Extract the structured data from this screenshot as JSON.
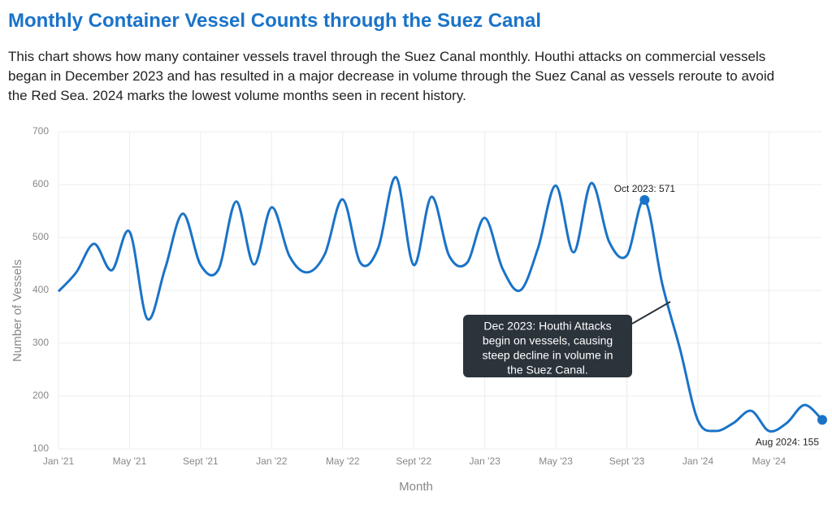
{
  "chart_data": {
    "type": "line",
    "title": "Monthly Container Vessel Counts through the Suez Canal",
    "subtitle": "This chart shows how many container vessels travel through the Suez Canal monthly. Houthi attacks on commercial vessels began in December 2023 and has resulted in a major decrease in volume through the Suez Canal as vessels reroute to avoid the Red Sea. 2024 marks the lowest volume months seen in recent history.",
    "x_label": "Month",
    "y_label": "Number of Vessels",
    "categories": [
      "Jan '21",
      null,
      null,
      null,
      "May '21",
      null,
      null,
      null,
      "Sept '21",
      null,
      null,
      null,
      "Jan '22",
      null,
      null,
      null,
      "May '22",
      null,
      null,
      null,
      "Sept '22",
      null,
      null,
      null,
      "Jan '23",
      null,
      null,
      null,
      "May '23",
      null,
      null,
      null,
      "Sept '23",
      null,
      null,
      null,
      "Jan '24",
      null,
      null,
      null,
      "May '24",
      null,
      null,
      null
    ],
    "series": [
      {
        "name": "Container vessels",
        "color": "#1a73c8",
        "values": [
          398,
          434,
          488,
          438,
          511,
          346,
          441,
          545,
          448,
          439,
          568,
          449,
          557,
          465,
          434,
          469,
          572,
          452,
          480,
          614,
          448,
          577,
          465,
          452,
          537,
          441,
          400,
          480,
          598,
          472,
          603,
          492,
          466,
          571,
          411,
          288,
          154,
          134,
          149,
          172,
          134,
          149,
          183,
          155
        ],
        "value_labels": [
          null,
          null,
          null,
          null,
          null,
          null,
          null,
          null,
          null,
          null,
          null,
          null,
          null,
          null,
          null,
          null,
          null,
          null,
          null,
          null,
          null,
          null,
          null,
          null,
          null,
          null,
          null,
          null,
          null,
          null,
          null,
          null,
          null,
          "Oct 2023: 571",
          null,
          null,
          null,
          null,
          null,
          null,
          null,
          null,
          null,
          "Aug 2024: 155"
        ]
      }
    ],
    "ylim": [
      100,
      700
    ],
    "yticks": [
      100,
      200,
      300,
      400,
      500,
      600,
      700
    ],
    "grid": true,
    "annotation": [
      "Dec 2023: Houthi Attacks",
      "begin on vessels, causing",
      "steep decline in volume in",
      "the Suez Canal."
    ]
  }
}
